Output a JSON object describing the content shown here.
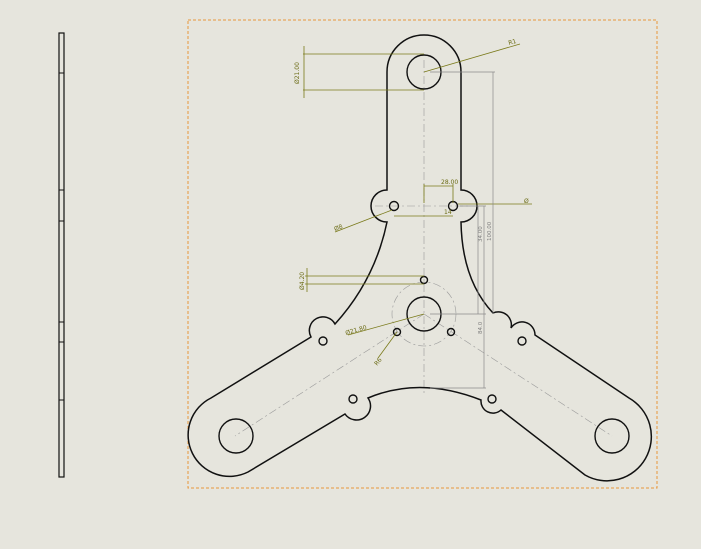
{
  "drawing": {
    "background": "#e6e5dd",
    "line_color": "#111111",
    "dimension_color": "#7a7a1a",
    "frame_color": "#e8963c",
    "centerline_color": "#9a9a9a"
  },
  "dimensions": {
    "top_hole_diameter": "Ø21.00",
    "top_hole_radius": "R1",
    "slot_width": "28.00",
    "slot_small": "14",
    "right_arrow": "Ø",
    "mid_hole_a": "Ø8",
    "vertical_1": "34.00",
    "vertical_2": "100.00",
    "small_hole_pair": "Ø4.20",
    "center_hole": "Ø21.80",
    "vertical_3": "84.0",
    "radius_bottom": "R6"
  }
}
